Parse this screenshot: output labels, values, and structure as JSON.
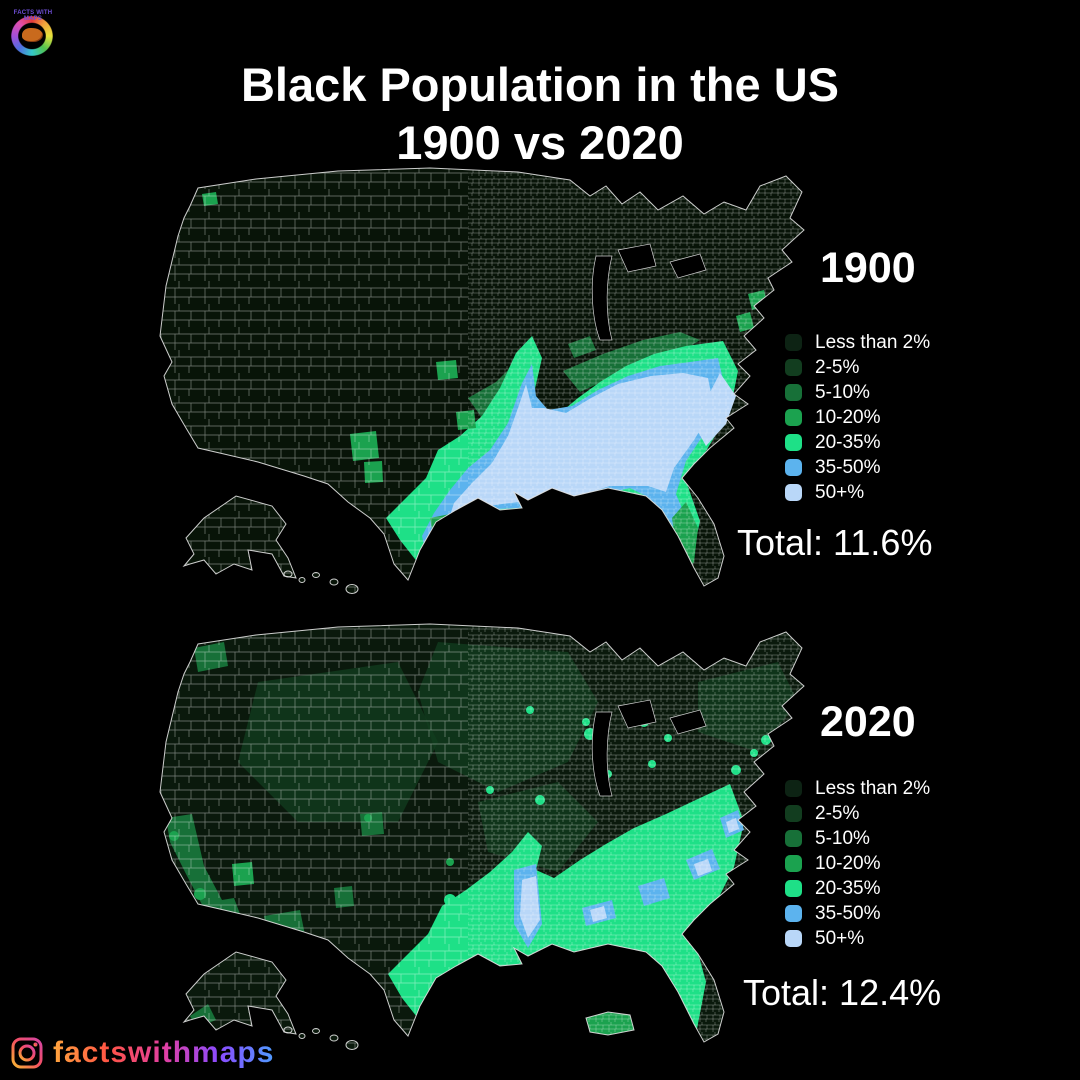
{
  "header": {
    "title_line1": "Black Population in the US",
    "title_line2": "1900 vs 2020"
  },
  "branding": {
    "logo_line1": "FACTS WITH",
    "logo_line2": "MAPS",
    "instagram_handle": "factswithmaps",
    "instagram_gradient": [
      "#ffa53d",
      "#ff5445",
      "#e33fa1",
      "#8a4bff",
      "#4f9bff"
    ]
  },
  "legend": {
    "items": [
      {
        "label": "Less than 2%",
        "color": "#0d2314"
      },
      {
        "label": "2-5%",
        "color": "#123d1f"
      },
      {
        "label": "5-10%",
        "color": "#177038"
      },
      {
        "label": "10-20%",
        "color": "#1ba24f"
      },
      {
        "label": "20-35%",
        "color": "#1ee087"
      },
      {
        "label": "35-50%",
        "color": "#5cb3ee"
      },
      {
        "label": "50+%",
        "color": "#b9d7f8"
      }
    ]
  },
  "maps": [
    {
      "year": "1900",
      "total": "Total: 11.6%"
    },
    {
      "year": "2020",
      "total": "Total: 12.4%"
    }
  ],
  "map_style": {
    "base1": "#081408",
    "base2": "#0a190c",
    "county_line": "#ffffff",
    "outline": "#e2e2e2",
    "ocean": "#000000"
  }
}
